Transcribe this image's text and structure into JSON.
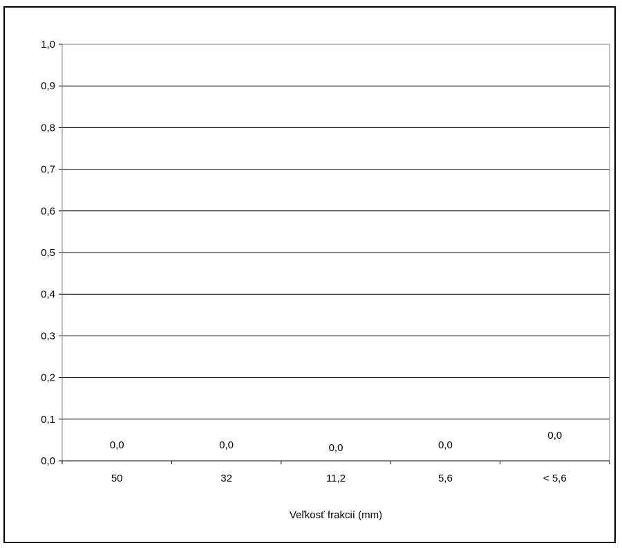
{
  "chart_data": {
    "type": "bar",
    "categories": [
      "50",
      "32",
      "11,2",
      "5,6",
      "< 5,6"
    ],
    "values": [
      0.0,
      0.0,
      0.0,
      0.0,
      0.0
    ],
    "data_labels": [
      "0,0",
      "0,0",
      "0,0",
      "0,0",
      "0,0"
    ],
    "xlabel": "Veľkosť  frakcií (mm)",
    "ylabel": "",
    "ylim": [
      0,
      1.0
    ],
    "yticks": [
      "0,0",
      "0,1",
      "0,2",
      "0,3",
      "0,4",
      "0,5",
      "0,6",
      "0,7",
      "0,8",
      "0,9",
      "1,0"
    ],
    "grid": true,
    "legend": "none",
    "colors": {
      "axis": "#000000",
      "grid": "#000000",
      "background": "#ffffff"
    }
  }
}
